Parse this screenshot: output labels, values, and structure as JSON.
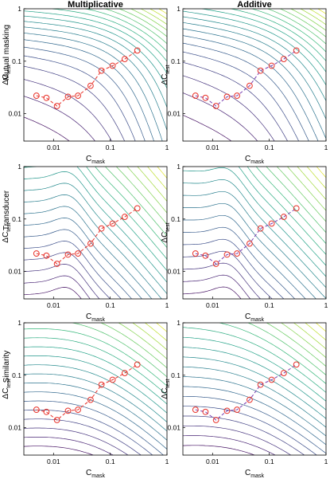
{
  "chart_data": {
    "type": "line",
    "layout": "3x2 grid of contour plots with overlaid data",
    "column_titles": [
      "Multiplicative",
      "Additive"
    ],
    "row_labels": [
      "Mutual masking",
      "Transducer",
      "Similarity"
    ],
    "xlabel": "C",
    "xlabel_sub": "mask",
    "ylabel": "ΔC",
    "ylabel_sub": "test",
    "x_scale": "log",
    "y_scale": "log",
    "xlim": [
      0.003,
      1
    ],
    "ylim": [
      0.003,
      1
    ],
    "x_ticks": [
      0.01,
      0.1,
      1
    ],
    "x_tick_labels": [
      "0.01",
      "0.1",
      "1"
    ],
    "y_ticks": [
      0.01,
      0.1,
      1
    ],
    "y_tick_labels": [
      "0.01",
      "0.1",
      "1"
    ],
    "background": "model response contours (viridis colormap, blue = low, yellow = high)",
    "data_marker": "open red circles joined by dashed line",
    "data_color": "#e8322a",
    "data_line_multiplicative": "#e8322a",
    "data_line_additive": "#7a3fb0",
    "series": [
      {
        "x": [
          0.005,
          0.0075,
          0.0115,
          0.018,
          0.027,
          0.045,
          0.07,
          0.11,
          0.18,
          0.3
        ],
        "y": [
          0.022,
          0.02,
          0.014,
          0.021,
          0.022,
          0.034,
          0.066,
          0.082,
          0.11,
          0.16
        ]
      }
    ],
    "panels": [
      {
        "row": "Mutual masking",
        "column": "Multiplicative",
        "model": "mutual",
        "mode": "mult"
      },
      {
        "row": "Mutual masking",
        "column": "Additive",
        "model": "mutual",
        "mode": "add"
      },
      {
        "row": "Transducer",
        "column": "Multiplicative",
        "model": "transducer",
        "mode": "mult"
      },
      {
        "row": "Transducer",
        "column": "Additive",
        "model": "transducer",
        "mode": "add"
      },
      {
        "row": "Similarity",
        "column": "Multiplicative",
        "model": "similarity",
        "mode": "mult"
      },
      {
        "row": "Similarity",
        "column": "Additive",
        "model": "similarity",
        "mode": "add"
      }
    ]
  }
}
